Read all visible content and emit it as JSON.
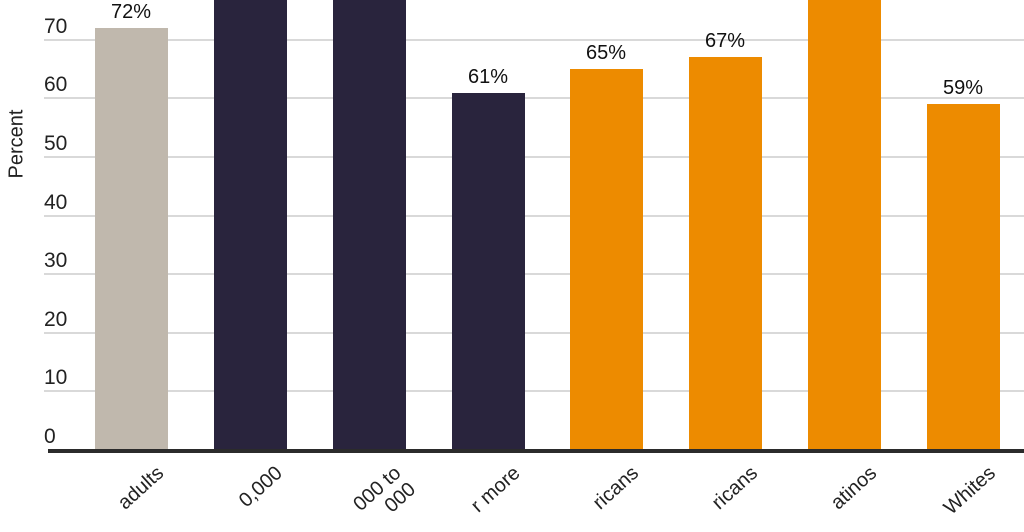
{
  "chart_data": {
    "type": "bar",
    "title": "",
    "xlabel": "",
    "ylabel": "Percent",
    "ylim": [
      0,
      77
    ],
    "yticks": [
      0,
      10,
      20,
      30,
      40,
      50,
      60,
      70
    ],
    "grid": true,
    "legend": null,
    "categories": [
      "…adults",
      "…0,000",
      "…000 to\n…000",
      "…r more",
      "…ricans",
      "…ricans",
      "…atinos",
      "…Whites"
    ],
    "values": [
      72,
      null,
      null,
      61,
      65,
      67,
      null,
      59
    ],
    "value_labels": [
      "72%",
      "",
      "",
      "61%",
      "65%",
      "67%",
      "",
      "59%"
    ],
    "notes": "Bars 2, 3 and 7 extend above the visible crop (value > ~77); their labels are not visible.",
    "colors": [
      "#c0b8ad",
      "#29243d",
      "#29243d",
      "#29243d",
      "#ed8b00",
      "#ed8b00",
      "#ed8b00",
      "#ed8b00"
    ]
  },
  "axis": {
    "y_title": "Percent",
    "ticks": [
      "0",
      "10",
      "20",
      "30",
      "40",
      "50",
      "60",
      "70"
    ]
  },
  "bars": [
    {
      "label": "adults",
      "value_text": "72%"
    },
    {
      "label": "0,000",
      "value_text": ""
    },
    {
      "label": "000 to\n   000",
      "value_text": ""
    },
    {
      "label": "r more",
      "value_text": "61%"
    },
    {
      "label": "ricans",
      "value_text": "65%"
    },
    {
      "label": "ricans",
      "value_text": "67%"
    },
    {
      "label": "atinos",
      "value_text": ""
    },
    {
      "label": "Whites",
      "value_text": "59%"
    }
  ]
}
